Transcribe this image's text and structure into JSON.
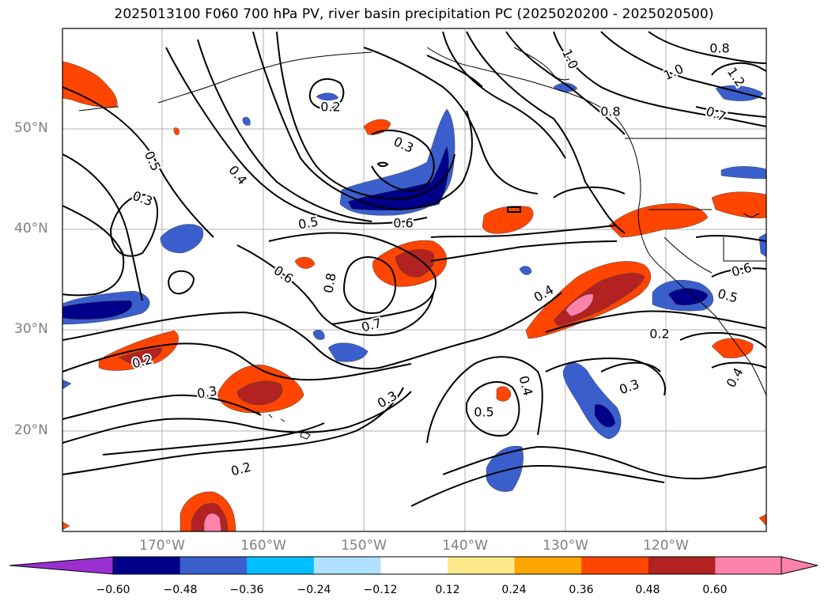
{
  "title": "2025013100 F060 700 hPa PV, river basin precipitation PC (2025020200 - 2025020500)",
  "map": {
    "lat_ticks": [
      "50°N",
      "40°N",
      "30°N",
      "20°N"
    ],
    "lon_ticks": [
      "170°W",
      "160°W",
      "150°W",
      "140°W",
      "130°W",
      "120°W"
    ],
    "gridlines": true,
    "contour_labels": [
      "0.8",
      "1.0",
      "1.0",
      "1.2",
      "0.8",
      "0.7",
      "0.2",
      "0.3",
      "0.5",
      "0.4",
      "0.3",
      "0.5",
      "0.6",
      "0.6",
      "0.8",
      "0.7",
      "0.4",
      "0.2",
      "0.5",
      "0.6",
      "0.4",
      "0.3",
      "0.5",
      "0.3",
      "0.2",
      "0.3",
      "0.2",
      "0.4"
    ],
    "fill_colors": {
      "neg_extreme": "#9b30d0",
      "neg_060": "#00008b",
      "neg_048": "#3a5fcd",
      "neg_036": "#00bfff",
      "neg_024": "#b0e2ff",
      "neutral": "#ffffff",
      "pos_012": "#ffe98a",
      "pos_024": "#ffa500",
      "pos_036": "#ff4500",
      "pos_048": "#b22222",
      "pos_060": "#ff82ab"
    }
  },
  "colorbar": {
    "labels": [
      "−0.60",
      "−0.48",
      "−0.36",
      "−0.24",
      "−0.12",
      "0.12",
      "0.24",
      "0.36",
      "0.48",
      "0.60"
    ],
    "colors": [
      "#9b30d0",
      "#00008b",
      "#3a5fcd",
      "#00bfff",
      "#b0e2ff",
      "#ffffff",
      "#ffe98a",
      "#ffa500",
      "#ff4500",
      "#b22222",
      "#ff82ab"
    ]
  }
}
